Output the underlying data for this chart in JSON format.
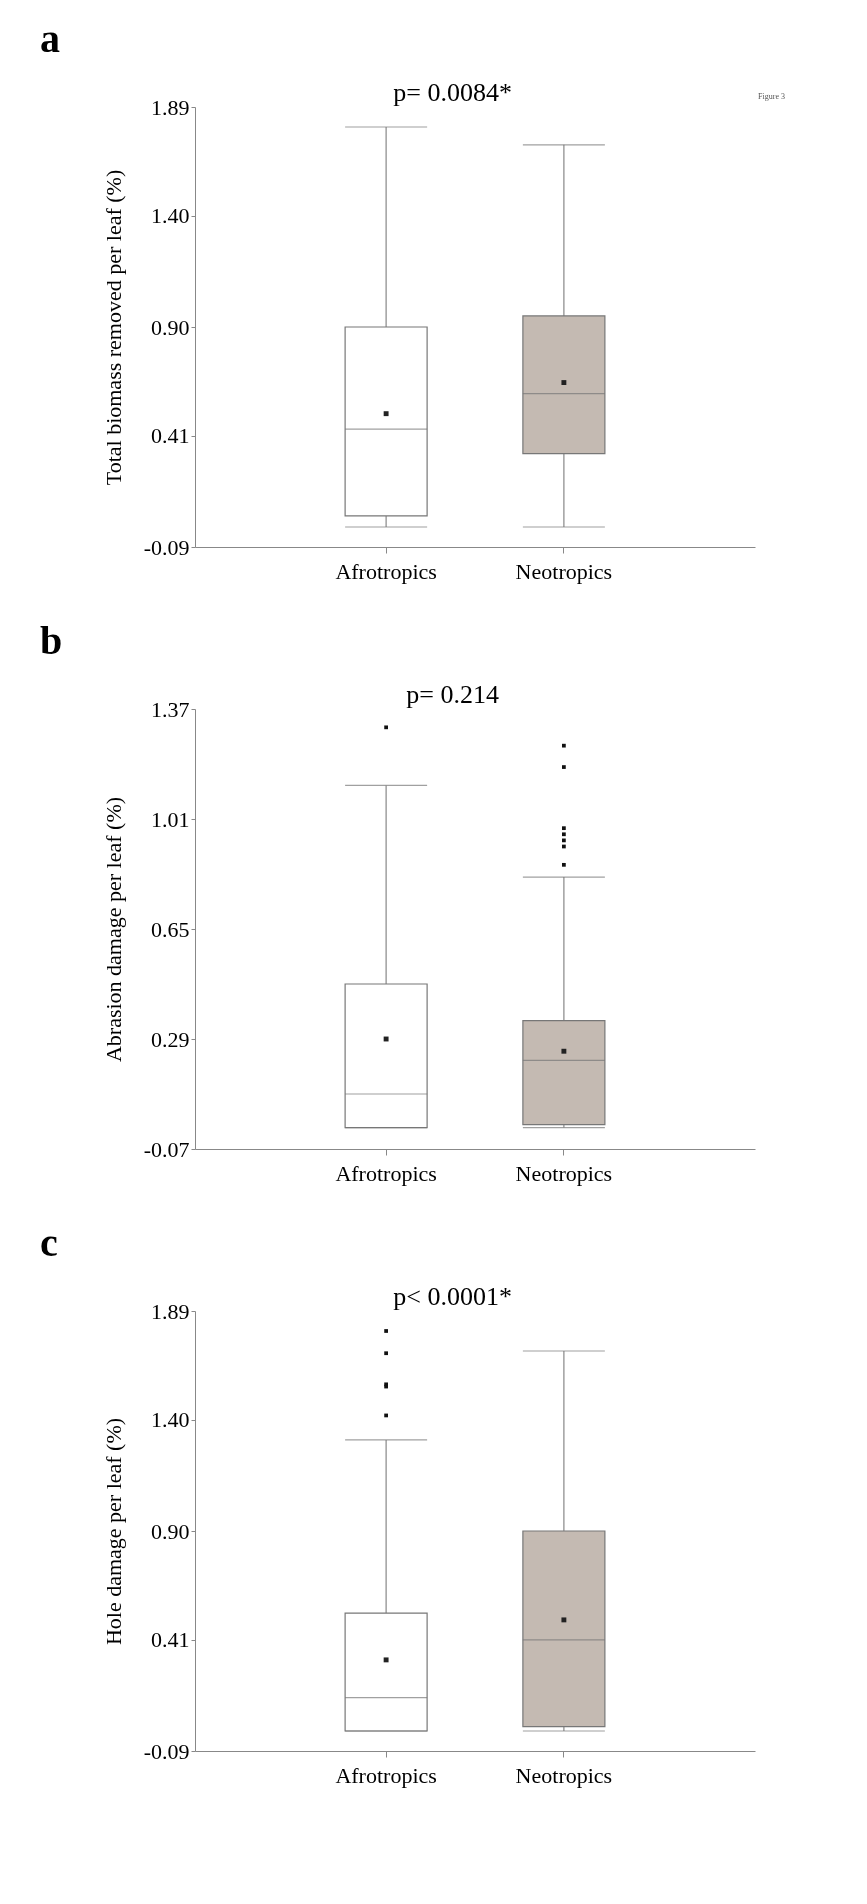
{
  "chart_data": [
    {
      "type": "box",
      "title": "a",
      "ylabel": "Total biomass removed per leaf (%)",
      "categories": [
        "Afrotropics",
        "Neotropics"
      ],
      "colors": [
        "#ffffff",
        "#c4bab2"
      ],
      "boxes": [
        {
          "low": 0.0,
          "q1": 0.05,
          "median": 0.44,
          "q3": 0.9,
          "high": 1.8,
          "mean": 0.51
        },
        {
          "low": 0.0,
          "q1": 0.33,
          "median": 0.6,
          "q3": 0.95,
          "high": 1.72,
          "mean": 0.65
        }
      ],
      "ylim": [
        -0.09,
        1.89
      ],
      "yticks": [
        {
          "value": -0.09,
          "label": "-0.09"
        },
        {
          "value": 0.41,
          "label": "0.41"
        },
        {
          "value": 0.9,
          "label": "0.90"
        },
        {
          "value": 1.4,
          "label": "1.40"
        },
        {
          "value": 1.89,
          "label": "1.89"
        }
      ],
      "annotations": [
        "p= 0.0084*",
        "Figure 3"
      ]
    },
    {
      "type": "box",
      "title": "b",
      "ylabel": "Abrasion damage per leaf (%)",
      "categories": [
        "Afrotropics",
        "Neotropics"
      ],
      "colors": [
        "#ffffff",
        "#c4bab2"
      ],
      "boxes": [
        {
          "low": 0.0,
          "q1": 0.0,
          "median": 0.11,
          "q3": 0.47,
          "high": 1.12,
          "mean": 0.29,
          "outliers": [
            1.31
          ]
        },
        {
          "low": 0.0,
          "q1": 0.01,
          "median": 0.22,
          "q3": 0.35,
          "high": 0.82,
          "mean": 0.25,
          "outliers": [
            1.25,
            1.18,
            0.98,
            0.96,
            0.94,
            0.92,
            0.86
          ]
        }
      ],
      "ylim": [
        -0.07,
        1.37
      ],
      "yticks": [
        {
          "value": -0.07,
          "label": "-0.07"
        },
        {
          "value": 0.29,
          "label": "0.29"
        },
        {
          "value": 0.65,
          "label": "0.65"
        },
        {
          "value": 1.01,
          "label": "1.01"
        },
        {
          "value": 1.37,
          "label": "1.37"
        }
      ],
      "annotations": [
        "p= 0.214"
      ]
    },
    {
      "type": "box",
      "title": "c",
      "ylabel": "Hole damage per leaf (%)",
      "categories": [
        "Afrotropics",
        "Neotropics"
      ],
      "colors": [
        "#ffffff",
        "#c4bab2"
      ],
      "boxes": [
        {
          "low": 0.0,
          "q1": 0.0,
          "median": 0.15,
          "q3": 0.53,
          "high": 1.31,
          "mean": 0.32,
          "outliers": [
            1.8,
            1.7,
            1.56,
            1.55,
            1.42
          ]
        },
        {
          "low": 0.0,
          "q1": 0.02,
          "median": 0.41,
          "q3": 0.9,
          "high": 1.71,
          "mean": 0.5
        }
      ],
      "ylim": [
        -0.09,
        1.89
      ],
      "yticks": [
        {
          "value": -0.09,
          "label": "-0.09"
        },
        {
          "value": 0.41,
          "label": "0.41"
        },
        {
          "value": 0.9,
          "label": "0.90"
        },
        {
          "value": 1.4,
          "label": "1.40"
        },
        {
          "value": 1.89,
          "label": "1.89"
        }
      ],
      "annotations": [
        "p< 0.0001*"
      ]
    }
  ]
}
